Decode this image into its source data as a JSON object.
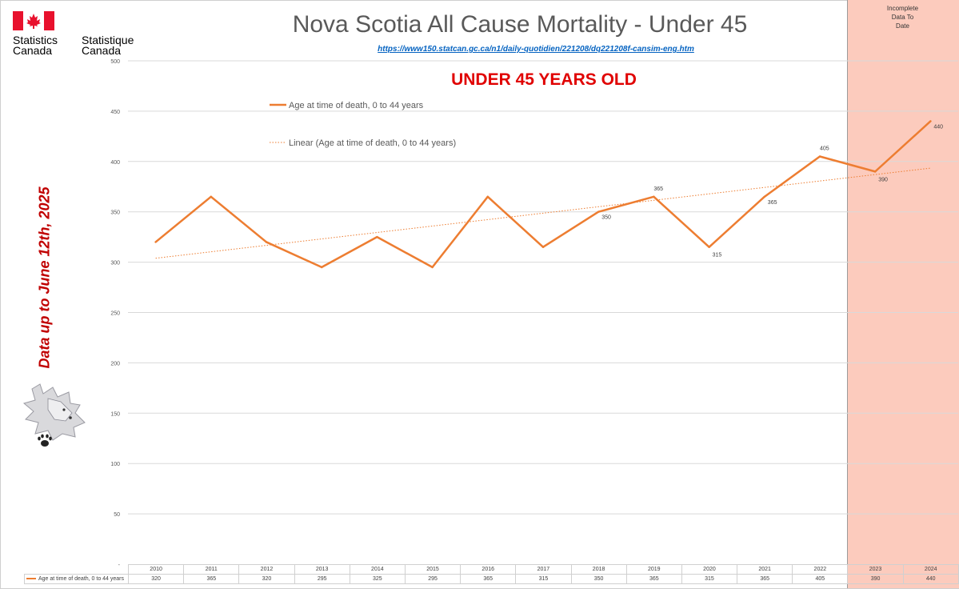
{
  "header": {
    "logo_en": "Statistics\nCanada",
    "logo_fr": "Statistique\nCanada",
    "title": "Nova Scotia All Cause Mortality - Under 45",
    "source_url": "https://www150.statcan.gc.ca/n1/daily-quotidien/221208/dq221208f-cansim-eng.htm",
    "subtitle": "UNDER 45 YEARS OLD"
  },
  "side_note": "Data up to June 12th, 2025",
  "incomplete_label": "Incomplete\nData To\nDate",
  "colors": {
    "series": "#ed7d31",
    "band": "#fccbbd",
    "title": "#595959",
    "subtitle": "#e00000",
    "side_note": "#c00000",
    "link": "#0563c1"
  },
  "chart_data": {
    "type": "line",
    "title": "Nova Scotia All Cause Mortality - Under 45",
    "categories": [
      "2010",
      "2011",
      "2012",
      "2013",
      "2014",
      "2015",
      "2016",
      "2017",
      "2018",
      "2019",
      "2020",
      "2021",
      "2022",
      "2023",
      "2024"
    ],
    "series": [
      {
        "name": "Age at time of death, 0 to 44 years",
        "values": [
          320,
          365,
          320,
          295,
          325,
          295,
          365,
          315,
          350,
          365,
          315,
          365,
          405,
          390,
          440
        ],
        "labels": [
          "",
          "",
          "",
          "",
          "",
          "",
          "",
          "",
          "350",
          "365",
          "315",
          "365",
          "405",
          "390",
          "440"
        ]
      }
    ],
    "trendline": {
      "name": "Linear (Age at time of death, 0 to 44 years)",
      "type": "linear"
    },
    "yticks": [
      "-",
      "50",
      "100",
      "150",
      "200",
      "250",
      "300",
      "350",
      "400",
      "450",
      "500"
    ],
    "ylim": [
      0,
      500
    ],
    "grid": true,
    "legend": "top-left",
    "incomplete_categories": [
      "2023",
      "2024"
    ]
  }
}
